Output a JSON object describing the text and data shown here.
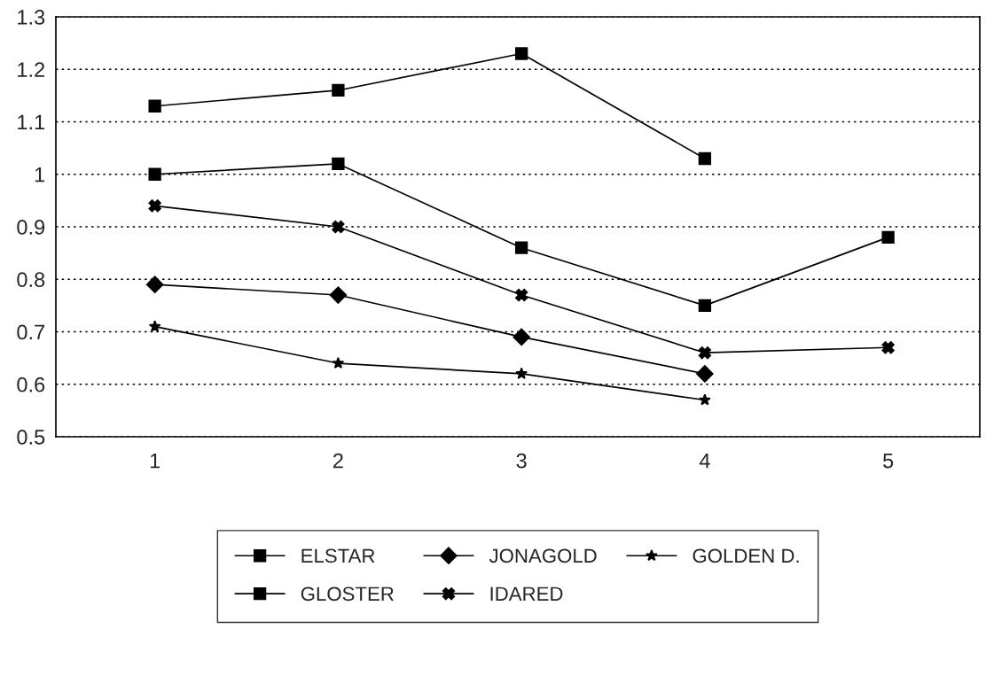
{
  "chart_data": {
    "type": "line",
    "x": [
      1,
      2,
      3,
      4,
      5
    ],
    "xlim": [
      0.46,
      5.5
    ],
    "xticks": [
      1,
      2,
      3,
      4,
      5
    ],
    "ylim": [
      0.5,
      1.3
    ],
    "yticks": [
      0.5,
      0.6,
      0.7,
      0.8,
      0.9,
      1,
      1.1,
      1.2,
      1.3
    ],
    "grid": "y",
    "legend": "bottom",
    "line_style": "solid",
    "series": [
      {
        "name": "ELSTAR",
        "color": "#000000",
        "marker": "square",
        "values": [
          1.13,
          1.16,
          1.23,
          1.03,
          null
        ]
      },
      {
        "name": "JONAGOLD",
        "color": "#000000",
        "marker": "diamond",
        "values": [
          0.79,
          0.77,
          0.69,
          0.62,
          null
        ]
      },
      {
        "name": "GOLDEN D.",
        "color": "#000000",
        "marker": "star",
        "values": [
          0.71,
          0.64,
          0.62,
          0.57,
          null
        ]
      },
      {
        "name": "GLOSTER",
        "color": "#000000",
        "marker": "square",
        "values": [
          1.0,
          1.02,
          0.86,
          0.75,
          0.88
        ]
      },
      {
        "name": "IDARED",
        "color": "#000000",
        "marker": "cross",
        "values": [
          0.94,
          0.9,
          0.77,
          0.66,
          0.67
        ]
      }
    ]
  }
}
